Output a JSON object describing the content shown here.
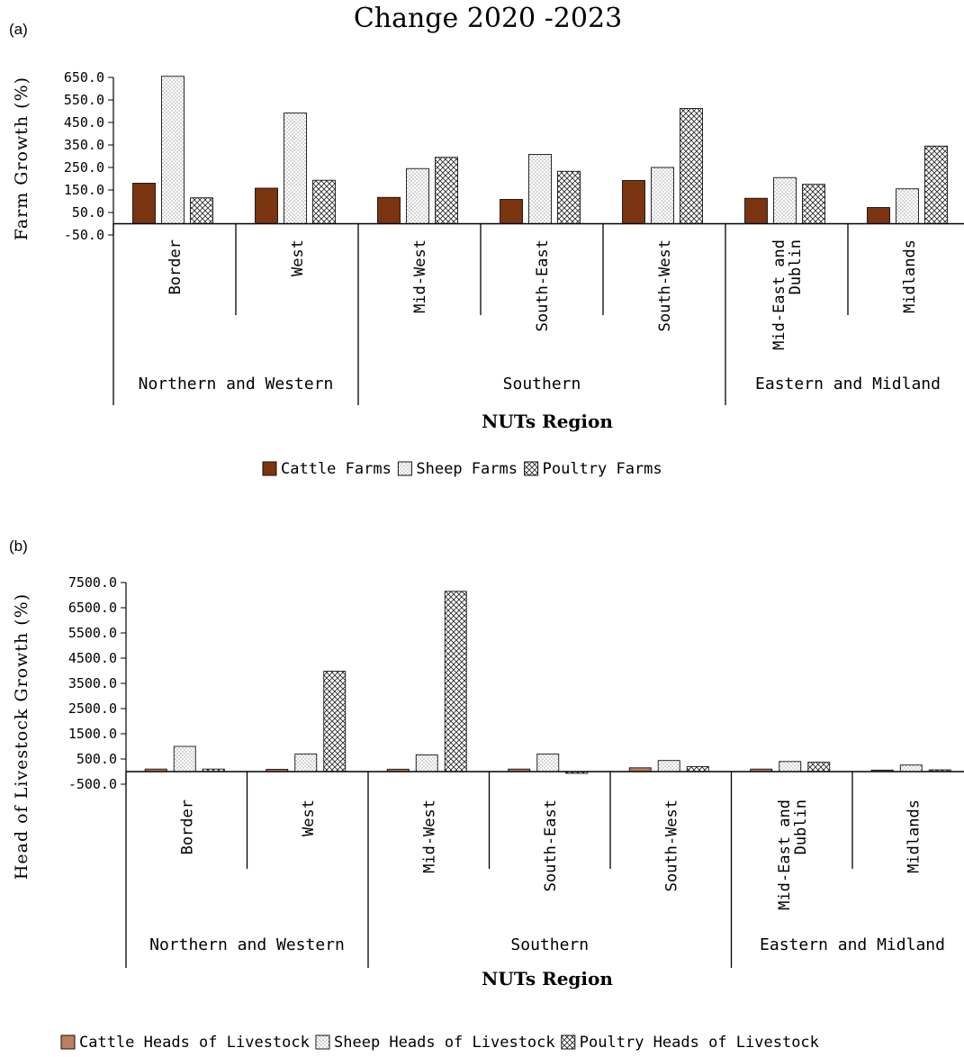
{
  "chart_data": [
    {
      "type": "bar",
      "panel_label": "(a)",
      "title": "Change 2020 -2023",
      "xlabel": "NUTs Region",
      "ylabel": "Farm Growth (%)",
      "ylim": [
        -50,
        650
      ],
      "yticks": [
        "650.0",
        "550.0",
        "450.0",
        "350.0",
        "250.0",
        "150.0",
        "50.0",
        "-50.0"
      ],
      "categories": [
        "Border",
        "West",
        "Mid-West",
        "South-East",
        "South-West",
        "Mid-East and Dublin",
        "Midlands"
      ],
      "groups": [
        {
          "label": "Northern and Western",
          "span": 2
        },
        {
          "label": "Southern",
          "span": 3
        },
        {
          "label": "Eastern and Midland",
          "span": 2
        }
      ],
      "series": [
        {
          "name": "Cattle Farms",
          "values": [
            180,
            158,
            117,
            108,
            192,
            113,
            72
          ]
        },
        {
          "name": "Sheep Farms",
          "values": [
            655,
            492,
            245,
            308,
            250,
            205,
            155
          ]
        },
        {
          "name": "Poultry Farms",
          "values": [
            115,
            193,
            295,
            233,
            512,
            175,
            345
          ]
        }
      ],
      "legend_position": "bottom",
      "grid": false
    },
    {
      "type": "bar",
      "panel_label": "(b)",
      "title": "",
      "xlabel": "NUTs Region",
      "ylabel": "Head of Livestock Growth (%)",
      "ylim": [
        -500,
        7500
      ],
      "yticks": [
        "7500.0",
        "6500.0",
        "5500.0",
        "4500.0",
        "3500.0",
        "2500.0",
        "1500.0",
        "500.0",
        "-500.0"
      ],
      "categories": [
        "Border",
        "West",
        "Mid-West",
        "South-East",
        "South-West",
        "Mid-East and Dublin",
        "Midlands"
      ],
      "groups": [
        {
          "label": "Northern and Western",
          "span": 2
        },
        {
          "label": "Southern",
          "span": 3
        },
        {
          "label": "Eastern and Midland",
          "span": 2
        }
      ],
      "series": [
        {
          "name": "Cattle Heads of Livestock",
          "values": [
            100,
            90,
            95,
            100,
            150,
            100,
            60
          ]
        },
        {
          "name": "Sheep Heads of Livestock",
          "values": [
            1000,
            700,
            660,
            700,
            440,
            400,
            260
          ]
        },
        {
          "name": "Poultry Heads of Livestock",
          "values": [
            100,
            3980,
            7150,
            -70,
            200,
            370,
            70
          ]
        }
      ],
      "legend_position": "bottom",
      "grid": false
    }
  ],
  "colors": {
    "cattle_a": "#7B3410",
    "cattle_b": "#B97F5E",
    "axis": "#000000"
  }
}
